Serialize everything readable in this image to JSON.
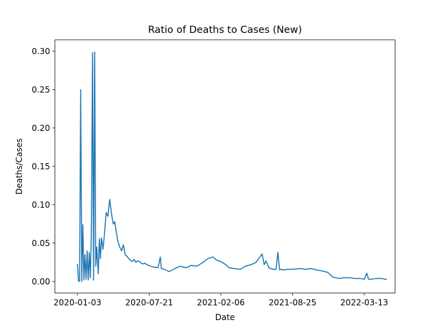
{
  "chart_data": {
    "type": "line",
    "title": "Ratio of Deaths to Cases (New)",
    "xlabel": "Date",
    "ylabel": "Deaths/Cases",
    "x_ticks": [
      "2020-01-03",
      "2020-07-21",
      "2021-02-06",
      "2021-08-25",
      "2022-03-13"
    ],
    "y_ticks": [
      "0.00",
      "0.05",
      "0.10",
      "0.15",
      "0.20",
      "0.25",
      "0.30"
    ],
    "xlim": [
      "2019-11-01",
      "2022-06-07"
    ],
    "ylim": [
      -0.015,
      0.315
    ],
    "grid": false,
    "line_color": "#1f77b4",
    "series": [
      {
        "x": [
          "2020-01-03",
          "2020-01-06",
          "2020-01-09",
          "2020-01-12",
          "2020-01-15",
          "2020-01-18",
          "2020-01-21",
          "2020-01-24",
          "2020-01-27",
          "2020-01-30",
          "2020-02-02",
          "2020-02-05",
          "2020-02-08",
          "2020-02-11",
          "2020-02-14",
          "2020-02-17",
          "2020-02-20",
          "2020-02-23",
          "2020-02-26",
          "2020-03-01",
          "2020-03-04",
          "2020-03-07",
          "2020-03-10",
          "2020-03-14",
          "2020-03-18",
          "2020-03-23",
          "2020-03-28",
          "2020-04-02",
          "2020-04-08",
          "2020-04-12",
          "2020-04-16",
          "2020-04-20",
          "2020-04-25",
          "2020-04-30",
          "2020-05-05",
          "2020-05-10",
          "2020-05-15",
          "2020-05-20",
          "2020-05-25",
          "2020-05-30",
          "2020-06-04",
          "2020-06-09",
          "2020-06-14",
          "2020-06-19",
          "2020-06-24",
          "2020-06-29",
          "2020-07-04",
          "2020-07-09",
          "2020-07-14",
          "2020-07-21",
          "2020-08-01",
          "2020-08-15",
          "2020-08-21",
          "2020-08-24",
          "2020-09-01",
          "2020-09-15",
          "2020-10-01",
          "2020-10-15",
          "2020-11-01",
          "2020-11-15",
          "2020-12-01",
          "2020-12-15",
          "2021-01-01",
          "2021-01-15",
          "2021-01-25",
          "2021-02-06",
          "2021-02-20",
          "2021-03-01",
          "2021-03-15",
          "2021-04-01",
          "2021-04-15",
          "2021-05-01",
          "2021-05-15",
          "2021-06-01",
          "2021-06-07",
          "2021-06-12",
          "2021-06-20",
          "2021-07-01",
          "2021-07-10",
          "2021-07-15",
          "2021-07-20",
          "2021-07-25",
          "2021-08-01",
          "2021-08-10",
          "2021-08-25",
          "2021-09-15",
          "2021-10-01",
          "2021-10-15",
          "2021-11-01",
          "2021-11-15",
          "2021-12-01",
          "2021-12-15",
          "2022-01-01",
          "2022-01-15",
          "2022-02-01",
          "2022-02-15",
          "2022-03-01",
          "2022-03-13",
          "2022-03-20",
          "2022-03-25",
          "2022-04-01",
          "2022-04-15",
          "2022-05-01",
          "2022-05-10",
          "2022-05-15"
        ],
        "y": [
          0.023,
          0.0,
          0.001,
          0.25,
          0.0,
          0.074,
          0.002,
          0.035,
          0.003,
          0.04,
          0.002,
          0.038,
          0.005,
          0.07,
          0.298,
          0.002,
          0.299,
          0.02,
          0.045,
          0.01,
          0.056,
          0.03,
          0.057,
          0.042,
          0.06,
          0.09,
          0.085,
          0.107,
          0.085,
          0.075,
          0.078,
          0.065,
          0.052,
          0.045,
          0.04,
          0.048,
          0.035,
          0.033,
          0.03,
          0.028,
          0.026,
          0.029,
          0.025,
          0.027,
          0.026,
          0.024,
          0.023,
          0.024,
          0.022,
          0.021,
          0.019,
          0.018,
          0.032,
          0.017,
          0.016,
          0.013,
          0.017,
          0.02,
          0.018,
          0.021,
          0.02,
          0.024,
          0.03,
          0.032,
          0.028,
          0.026,
          0.022,
          0.018,
          0.017,
          0.016,
          0.02,
          0.022,
          0.025,
          0.036,
          0.022,
          0.027,
          0.018,
          0.016,
          0.016,
          0.038,
          0.015,
          0.016,
          0.015,
          0.016,
          0.016,
          0.017,
          0.016,
          0.017,
          0.015,
          0.014,
          0.012,
          0.006,
          0.004,
          0.005,
          0.005,
          0.004,
          0.004,
          0.003,
          0.011,
          0.003,
          0.003,
          0.004,
          0.004,
          0.003,
          0.003
        ]
      }
    ]
  }
}
